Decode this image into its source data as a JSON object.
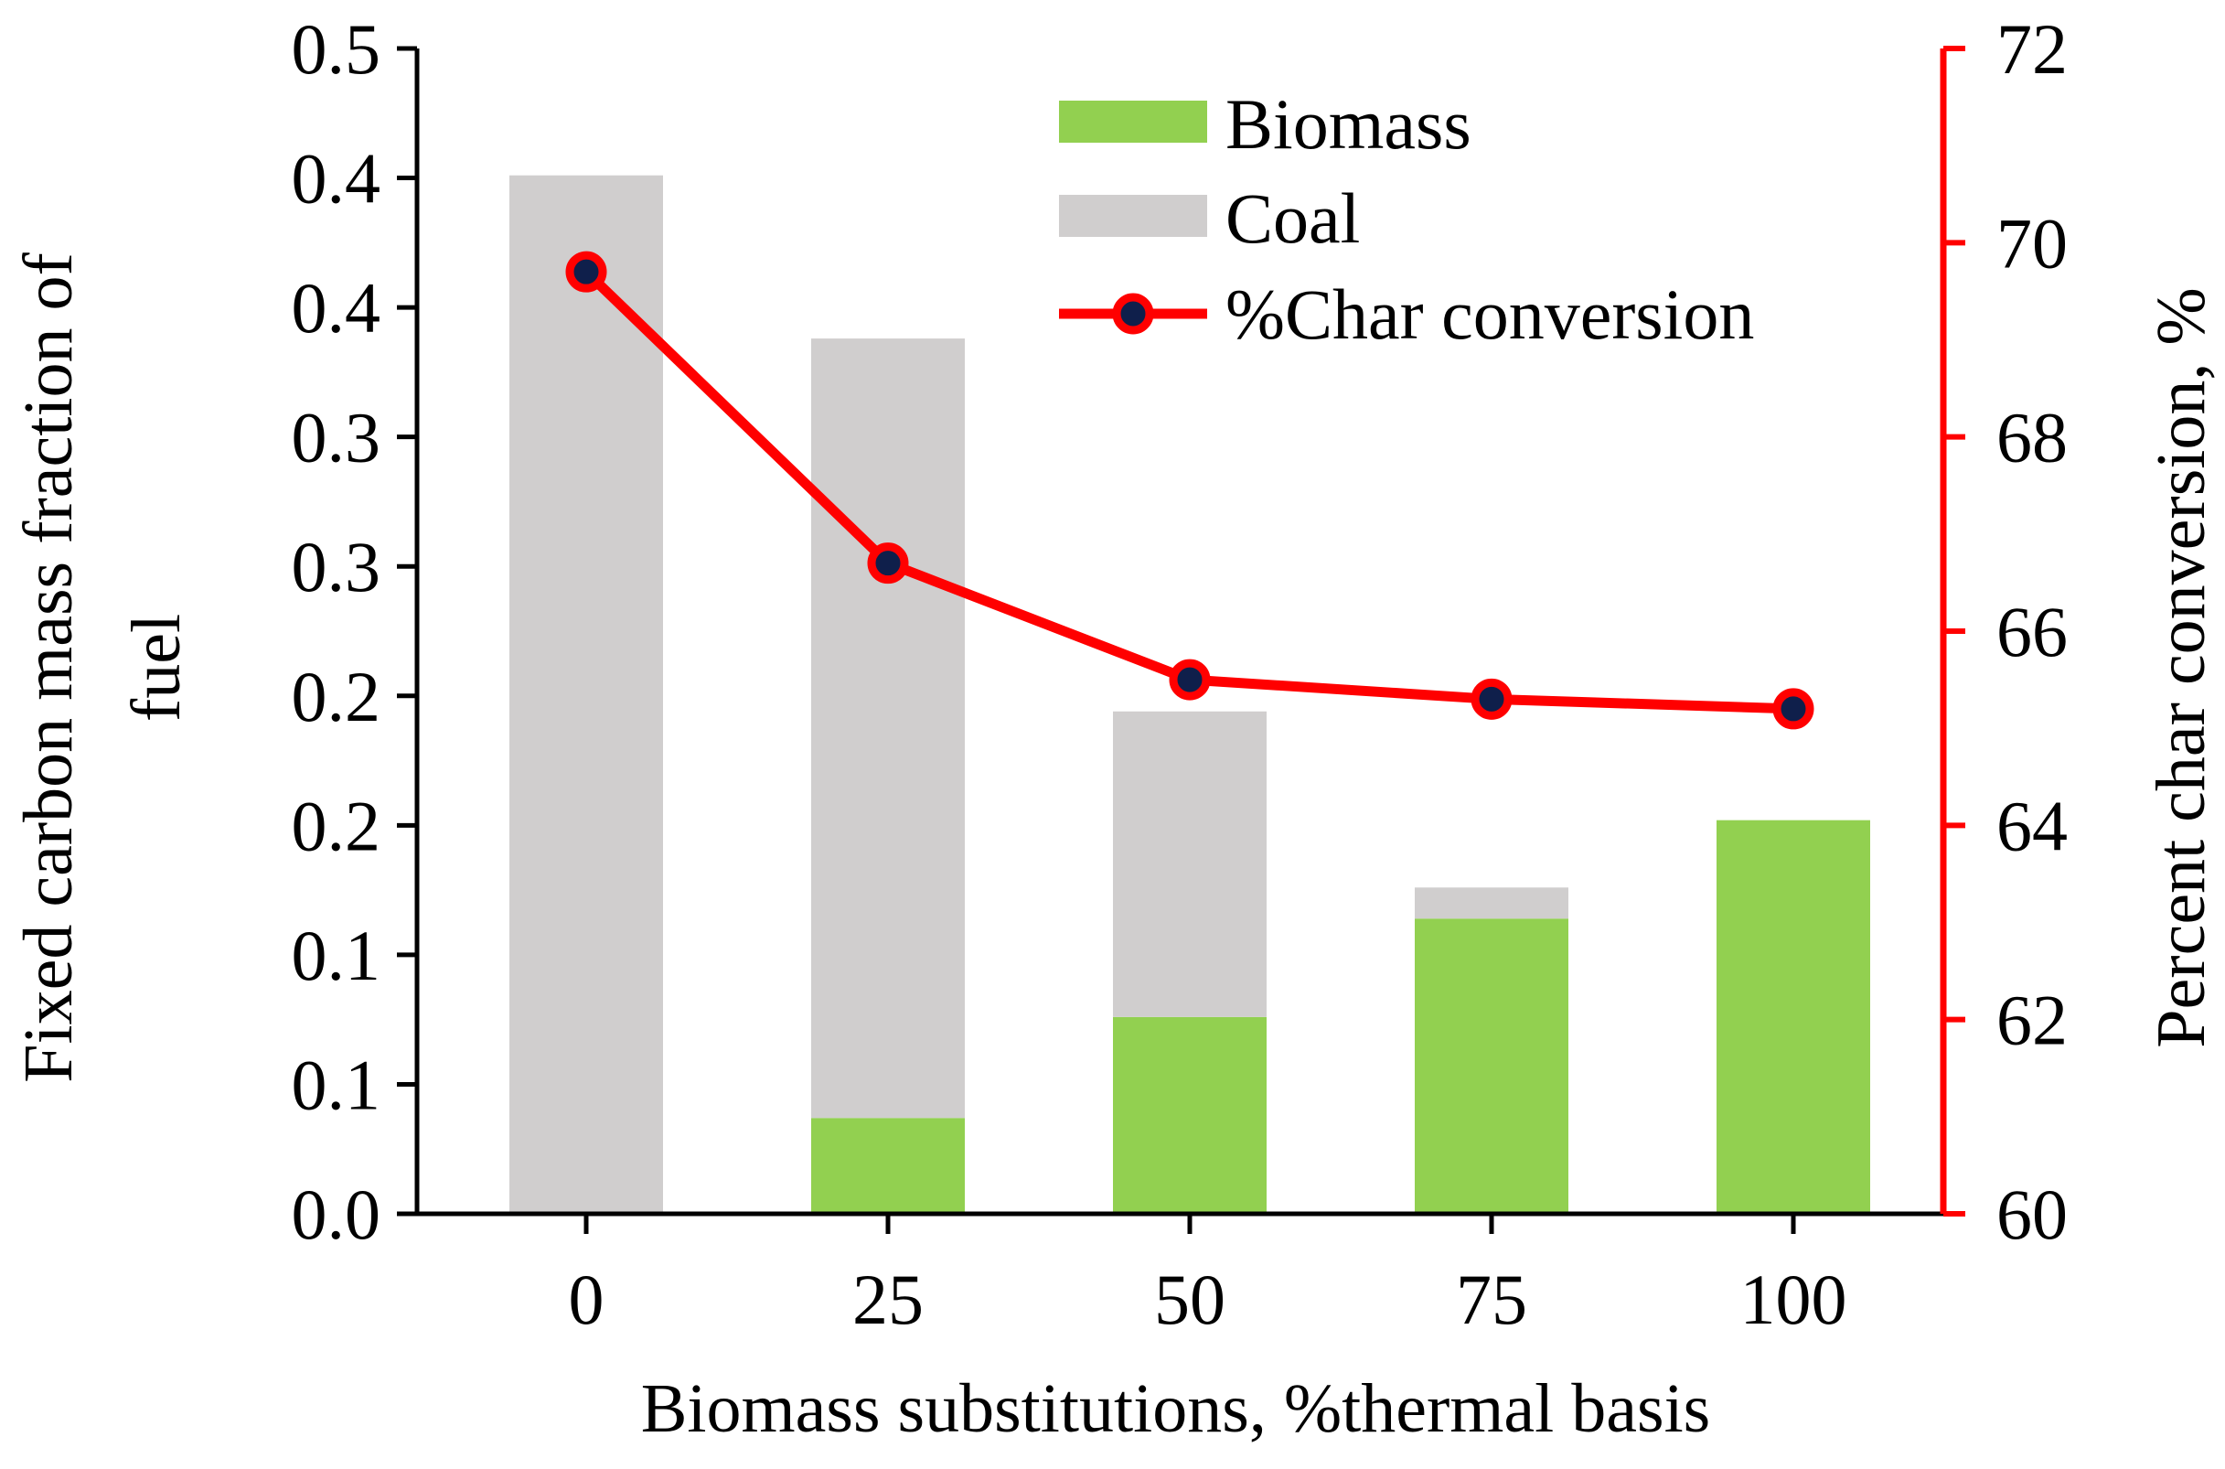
{
  "chart_data": {
    "type": "bar",
    "stacked": true,
    "categories": [
      "0",
      "25",
      "50",
      "75",
      "100"
    ],
    "series": [
      {
        "name": "Biomass",
        "type": "bar",
        "axis": "left",
        "color": "#92D050",
        "values": [
          0.0,
          0.037,
          0.076,
          0.114,
          0.152
        ]
      },
      {
        "name": "Coal",
        "type": "bar",
        "axis": "left",
        "color": "#D0CECE",
        "values": [
          0.401,
          0.301,
          0.118,
          0.012,
          0.0
        ]
      },
      {
        "name": "%Char conversion",
        "type": "line",
        "axis": "right",
        "color": "#FF0000",
        "marker_color": "#0F1F4B",
        "values": [
          69.7,
          66.7,
          65.5,
          65.3,
          65.2
        ]
      }
    ],
    "xlabel": "Biomass substitutions, %thermal basis",
    "ylabel_left_lines": [
      "Fixed carbon mass fraction of",
      "fuel"
    ],
    "ylabel_right": "Percent char conversion, %",
    "ylim_left": [
      0,
      0.45
    ],
    "ylim_right": [
      60,
      72
    ],
    "left_tick_values": [
      0,
      0.05,
      0.1,
      0.15,
      0.2,
      0.25,
      0.3,
      0.35,
      0.4,
      0.45
    ],
    "left_tick_labels": [
      "0.0",
      "0.1",
      "0.1",
      "0.2",
      "0.2",
      "0.3",
      "0.3",
      "0.4",
      "0.4",
      "0.5"
    ],
    "right_tick_values": [
      60,
      62,
      64,
      66,
      68,
      70,
      72
    ],
    "right_tick_labels": [
      "60",
      "62",
      "64",
      "66",
      "68",
      "70",
      "72"
    ],
    "legend": [
      "Biomass",
      "Coal",
      "%Char conversion"
    ],
    "legend_position": "top-center",
    "grid": false
  }
}
